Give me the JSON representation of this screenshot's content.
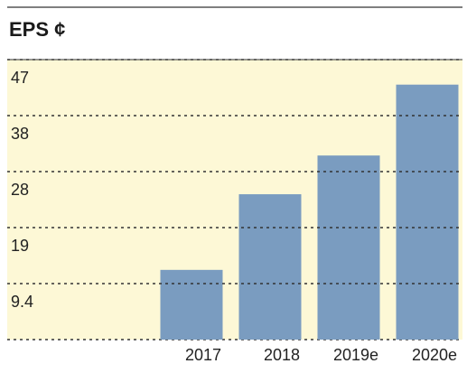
{
  "chart_data": {
    "type": "bar",
    "title": "EPS ¢",
    "categories": [
      "2017",
      "2018",
      "2019e",
      "2020e"
    ],
    "values": [
      11.7,
      24.4,
      30.9,
      42.8
    ],
    "color": "#7a9cc0",
    "ylim": [
      0,
      47
    ],
    "yticks": [
      9.4,
      {
        "value": 18.8,
        "label": "19"
      },
      {
        "value": 28.2,
        "label": "28"
      },
      {
        "value": 37.6,
        "label": "38"
      },
      47
    ],
    "grid": true
  }
}
